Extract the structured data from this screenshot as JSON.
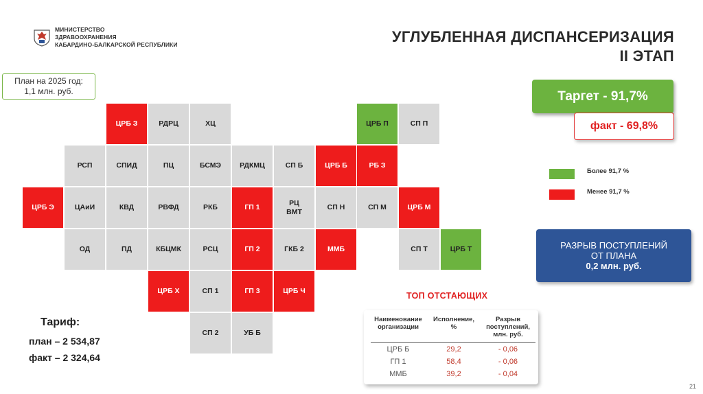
{
  "header": {
    "ministry_lines": [
      "МИНИСТЕРСТВО",
      "ЗДРАВООХРАНЕНИЯ",
      "КАБАРДИНО-БАЛКАРСКОЙ РЕСПУБЛИКИ"
    ],
    "title_lines": [
      "УГЛУБЛЕННАЯ ДИСПАНСЕРИЗАЦИЯ",
      "II ЭТАП"
    ],
    "emblem_icon": "coat-of-arms-icon"
  },
  "plan_box": {
    "line1": "План на 2025 год:",
    "line2": "1,1 млн. руб."
  },
  "colors": {
    "red": "#ee1c1c",
    "green": "#6cb33f",
    "gray": "#d9d9d9",
    "blue": "#2e5597"
  },
  "grid": [
    {
      "label": "ЦРБ З",
      "status": "red"
    },
    {
      "label": "РДРЦ",
      "status": "gray"
    },
    {
      "label": "ХЦ",
      "status": "gray"
    },
    {
      "label": "ЦРБ П",
      "status": "green"
    },
    {
      "label": "СП П",
      "status": "gray"
    },
    {
      "label": "РСП",
      "status": "gray"
    },
    {
      "label": "СПИД",
      "status": "gray"
    },
    {
      "label": "ПЦ",
      "status": "gray"
    },
    {
      "label": "БСМЭ",
      "status": "gray"
    },
    {
      "label": "РДКМЦ",
      "status": "gray"
    },
    {
      "label": "СП Б",
      "status": "gray"
    },
    {
      "label": "ЦРБ Б",
      "status": "red"
    },
    {
      "label": "РБ З",
      "status": "red"
    },
    {
      "label": "ЦРБ Э",
      "status": "red"
    },
    {
      "label": "ЦАиИ",
      "status": "gray"
    },
    {
      "label": "КВД",
      "status": "gray"
    },
    {
      "label": "РВФД",
      "status": "gray"
    },
    {
      "label": "РКБ",
      "status": "gray"
    },
    {
      "label": "ГП 1",
      "status": "red"
    },
    {
      "label": "РЦ\nВМТ",
      "status": "gray"
    },
    {
      "label": "СП Н",
      "status": "gray"
    },
    {
      "label": "СП М",
      "status": "gray"
    },
    {
      "label": "ЦРБ М",
      "status": "red"
    },
    {
      "label": "ОД",
      "status": "gray"
    },
    {
      "label": "ПД",
      "status": "gray"
    },
    {
      "label": "КБЦМК",
      "status": "gray"
    },
    {
      "label": "РСЦ",
      "status": "gray"
    },
    {
      "label": "ГП 2",
      "status": "red"
    },
    {
      "label": "ГКБ 2",
      "status": "gray"
    },
    {
      "label": "ММБ",
      "status": "red"
    },
    {
      "label": "СП Т",
      "status": "gray"
    },
    {
      "label": "ЦРБ Т",
      "status": "green"
    },
    {
      "label": "ЦРБ Х",
      "status": "red"
    },
    {
      "label": "СП 1",
      "status": "gray"
    },
    {
      "label": "ГП 3",
      "status": "red"
    },
    {
      "label": "ЦРБ Ч",
      "status": "red"
    },
    {
      "label": "СП 2",
      "status": "gray"
    },
    {
      "label": "УБ Б",
      "status": "gray"
    }
  ],
  "target": "Таргет  -  91,7%",
  "fact": "факт  -  69,8%",
  "legend": [
    {
      "label": "Более 91,7 %",
      "color": "#6cb33f"
    },
    {
      "label": "Менее 91,7 %",
      "color": "#ee1c1c"
    }
  ],
  "gap_box": {
    "line1": "РАЗРЫВ ПОСТУПЛЕНИЙ",
    "line2": "ОТ ПЛАНА",
    "line3": "0,2 млн. руб."
  },
  "top_title": "ТОП ОТСТАЮЩИХ",
  "table": {
    "headers": [
      "Наименование\nорганизации",
      "Исполнение,\n%",
      "Разрыв\nпоступлений,\nмлн. руб."
    ],
    "rows": [
      {
        "org": "ЦРБ Б",
        "exec": "29,2",
        "gap": "- 0,06"
      },
      {
        "org": "ГП 1",
        "exec": "58,4",
        "gap": "- 0,06"
      },
      {
        "org": "ММБ",
        "exec": "39,2",
        "gap": "- 0,04"
      }
    ]
  },
  "tariff": {
    "title": "Тариф:",
    "plan": "план – 2 534,87",
    "fact": "факт – 2 324,64"
  },
  "page_number": "21"
}
